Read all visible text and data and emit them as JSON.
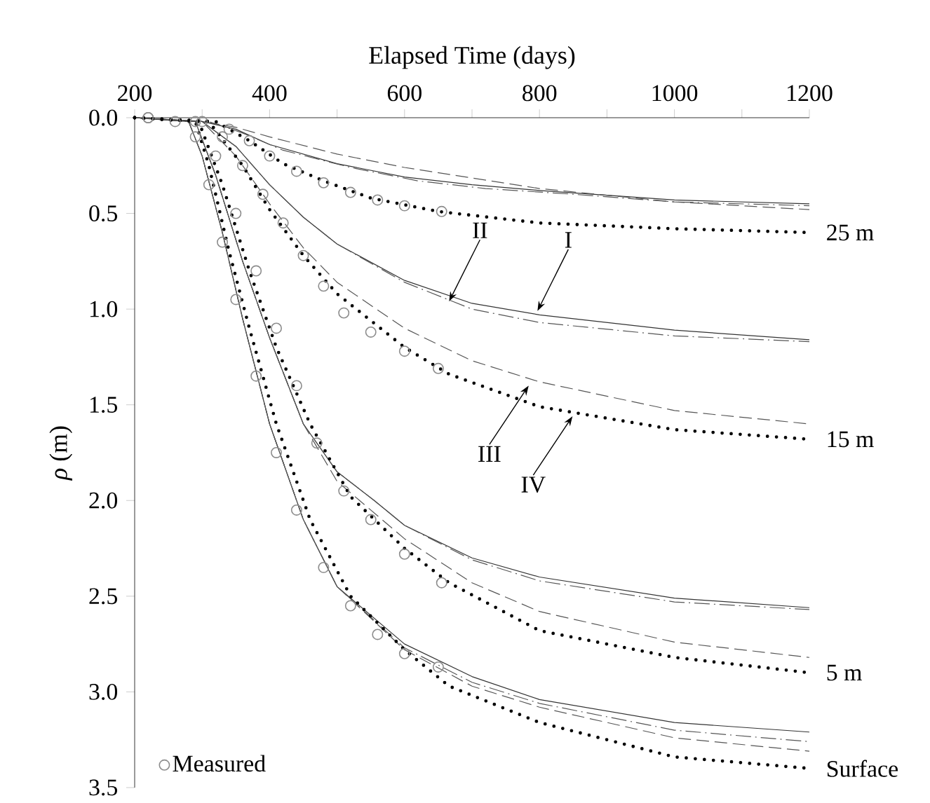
{
  "chart_data": {
    "type": "line",
    "xlabel": "Elapsed Time (days)",
    "ylabel": "*ρ* (m)",
    "xlim": [
      200,
      1200
    ],
    "ylim": [
      3.5,
      0
    ],
    "xticks": [
      200,
      {
        "value": 300,
        "label": null
      },
      400,
      {
        "value": 500,
        "label": null
      },
      600,
      {
        "value": 700,
        "label": null
      },
      800,
      {
        "value": 900,
        "label": null
      },
      1000,
      {
        "value": 1100,
        "label": null
      },
      1200
    ],
    "yticks": [
      {
        "value": 0,
        "label": "0.0"
      },
      0.5,
      {
        "value": 1,
        "label": "1.0"
      },
      1.5,
      {
        "value": 2,
        "label": "2.0"
      },
      2.5,
      {
        "value": 3,
        "label": "3.0"
      },
      3.5
    ],
    "legend": "bottom left",
    "series": [
      {
        "type": "scatter",
        "name": "Measured",
        "color": "#8c8c8c",
        "marker": "circle",
        "x": [
          220,
          260,
          290,
          310,
          330,
          350,
          380,
          410,
          440,
          480,
          520,
          560,
          600,
          650
        ],
        "values": [
          0.0,
          0.02,
          0.1,
          0.35,
          0.65,
          0.95,
          1.35,
          1.75,
          2.05,
          2.35,
          2.55,
          2.7,
          2.8,
          2.87
        ]
      },
      {
        "type": "scatter",
        "color": "#8c8c8c",
        "marker": "circle",
        "x": [
          290,
          320,
          350,
          380,
          410,
          440,
          470,
          510,
          550,
          600,
          655
        ],
        "values": [
          0.02,
          0.2,
          0.5,
          0.8,
          1.1,
          1.4,
          1.7,
          1.95,
          2.1,
          2.28,
          2.43
        ]
      },
      {
        "type": "scatter",
        "color": "#8c8c8c",
        "marker": "circle",
        "x": [
          300,
          330,
          360,
          390,
          420,
          450,
          480,
          510,
          550,
          600,
          650
        ],
        "values": [
          0.02,
          0.1,
          0.25,
          0.4,
          0.55,
          0.72,
          0.88,
          1.02,
          1.12,
          1.22,
          1.31
        ]
      },
      {
        "type": "scatter",
        "color": "#8c8c8c",
        "marker": "circle",
        "x": [
          220,
          300,
          340,
          370,
          400,
          440,
          480,
          520,
          560,
          600,
          655
        ],
        "values": [
          0.0,
          null,
          0.06,
          0.12,
          0.2,
          0.28,
          0.34,
          0.39,
          0.43,
          0.46,
          0.49
        ]
      },
      {
        "color": "#333333",
        "line_style": "solid",
        "x": [
          200,
          280,
          300,
          330,
          360,
          400,
          450,
          500,
          600,
          700,
          800,
          1000,
          1200
        ],
        "values": [
          0,
          0.02,
          0.2,
          0.6,
          1.05,
          1.6,
          2.1,
          2.45,
          2.75,
          2.92,
          3.04,
          3.16,
          3.21
        ]
      },
      {
        "color": "#555555",
        "line_style": "dashdot",
        "x": [
          200,
          280,
          300,
          330,
          360,
          400,
          450,
          500,
          600,
          700,
          800,
          1000,
          1200
        ],
        "values": [
          0,
          0.02,
          0.2,
          0.6,
          1.05,
          1.6,
          2.1,
          2.45,
          2.77,
          2.95,
          3.06,
          3.2,
          3.26
        ]
      },
      {
        "color": "#555555",
        "line_style": "dashed",
        "x": [
          200,
          280,
          300,
          330,
          360,
          400,
          450,
          500,
          600,
          700,
          800,
          1000,
          1200
        ],
        "values": [
          0,
          0.02,
          0.2,
          0.6,
          1.05,
          1.6,
          2.1,
          2.45,
          2.78,
          2.97,
          3.08,
          3.24,
          3.31
        ]
      },
      {
        "color": "#000000",
        "line_style": "dotted",
        "x": [
          200,
          290,
          310,
          340,
          370,
          410,
          460,
          520,
          600,
          666,
          800,
          1000,
          1200
        ],
        "values": [
          0,
          0.02,
          0.25,
          0.7,
          1.1,
          1.6,
          2.1,
          2.5,
          2.78,
          2.97,
          3.16,
          3.34,
          3.4
        ]
      },
      {
        "color": "#333333",
        "line_style": "solid",
        "x": [
          200,
          290,
          320,
          360,
          400,
          450,
          500,
          555,
          600,
          700,
          800,
          1000,
          1200
        ],
        "values": [
          0,
          0.02,
          0.3,
          0.75,
          1.15,
          1.6,
          1.85,
          2.0,
          2.13,
          2.3,
          2.4,
          2.51,
          2.56
        ]
      },
      {
        "color": "#555555",
        "line_style": "dashdot",
        "x": [
          200,
          290,
          320,
          360,
          400,
          450,
          500,
          555,
          600,
          700,
          800,
          1000,
          1200
        ],
        "values": [
          0,
          0.02,
          0.3,
          0.75,
          1.15,
          1.6,
          1.85,
          2.0,
          2.13,
          2.31,
          2.42,
          2.53,
          2.57
        ]
      },
      {
        "color": "#555555",
        "line_style": "dashed",
        "x": [
          200,
          290,
          320,
          360,
          400,
          450,
          500,
          600,
          700,
          800,
          1000,
          1200
        ],
        "values": [
          0,
          0.02,
          0.3,
          0.75,
          1.15,
          1.6,
          1.9,
          2.2,
          2.43,
          2.58,
          2.74,
          2.82
        ]
      },
      {
        "color": "#000000",
        "line_style": "dotted",
        "x": [
          200,
          295,
          330,
          370,
          410,
          460,
          520,
          600,
          666,
          800,
          1000,
          1200
        ],
        "values": [
          0,
          0.02,
          0.35,
          0.8,
          1.2,
          1.6,
          1.98,
          2.25,
          2.43,
          2.68,
          2.82,
          2.9
        ]
      },
      {
        "color": "#333333",
        "line_style": "solid",
        "x": [
          200,
          300,
          350,
          400,
          450,
          500,
          600,
          700,
          800,
          1000,
          1200
        ],
        "values": [
          0,
          0.02,
          0.15,
          0.35,
          0.52,
          0.66,
          0.85,
          0.97,
          1.03,
          1.11,
          1.16
        ]
      },
      {
        "color": "#555555",
        "line_style": "dashdot",
        "x": [
          200,
          300,
          350,
          400,
          450,
          500,
          600,
          700,
          800,
          1000,
          1200
        ],
        "values": [
          0,
          0.02,
          0.15,
          0.35,
          0.52,
          0.66,
          0.86,
          1.0,
          1.07,
          1.14,
          1.17
        ]
      },
      {
        "color": "#555555",
        "line_style": "dashed",
        "x": [
          200,
          300,
          350,
          400,
          450,
          500,
          600,
          700,
          800,
          1000,
          1200
        ],
        "values": [
          0,
          0.02,
          0.2,
          0.45,
          0.68,
          0.86,
          1.1,
          1.27,
          1.38,
          1.53,
          1.6
        ]
      },
      {
        "color": "#000000",
        "line_style": "dotted",
        "x": [
          200,
          310,
          360,
          400,
          450,
          500,
          600,
          666,
          800,
          1000,
          1200
        ],
        "values": [
          0,
          0.02,
          0.25,
          0.48,
          0.72,
          0.92,
          1.2,
          1.34,
          1.51,
          1.63,
          1.68
        ]
      },
      {
        "color": "#333333",
        "line_style": "solid",
        "x": [
          200,
          300,
          350,
          400,
          500,
          600,
          700,
          800,
          1000,
          1200
        ],
        "values": [
          0,
          0.02,
          0.06,
          0.14,
          0.24,
          0.31,
          0.35,
          0.38,
          0.43,
          0.45
        ]
      },
      {
        "color": "#555555",
        "line_style": "dashdot",
        "x": [
          200,
          310,
          360,
          420,
          520,
          620,
          720,
          850,
          1000,
          1200
        ],
        "values": [
          0,
          0.02,
          0.08,
          0.17,
          0.26,
          0.33,
          0.37,
          0.4,
          0.44,
          0.46
        ]
      },
      {
        "color": "#555555",
        "line_style": "dashed",
        "x": [
          200,
          300,
          350,
          400,
          500,
          600,
          800,
          1000,
          1200
        ],
        "values": [
          0,
          0.02,
          0.05,
          0.1,
          0.19,
          0.26,
          0.37,
          0.44,
          0.48
        ]
      },
      {
        "color": "#000000",
        "line_style": "dotted",
        "x": [
          200,
          320,
          370,
          420,
          480,
          550,
          650,
          800,
          1000,
          1200
        ],
        "values": [
          0,
          0.02,
          0.12,
          0.24,
          0.33,
          0.42,
          0.49,
          0.55,
          0.58,
          0.6
        ]
      }
    ],
    "annotations": [
      {
        "text": "II",
        "x": 666,
        "y": 0.96
      },
      {
        "text": "I",
        "x": 797,
        "y": 1.01
      },
      {
        "text": "III",
        "x": 784,
        "y": 1.4
      },
      {
        "text": "IV",
        "x": 849,
        "y": 1.56
      },
      {
        "text": "25 m",
        "x": 1200,
        "y": 0.6
      },
      {
        "text": "15 m",
        "x": 1200,
        "y": 1.68
      },
      {
        "text": "5 m",
        "x": 1200,
        "y": 2.9
      },
      {
        "text": "Surface",
        "x": 1200,
        "y": 3.4
      }
    ]
  }
}
